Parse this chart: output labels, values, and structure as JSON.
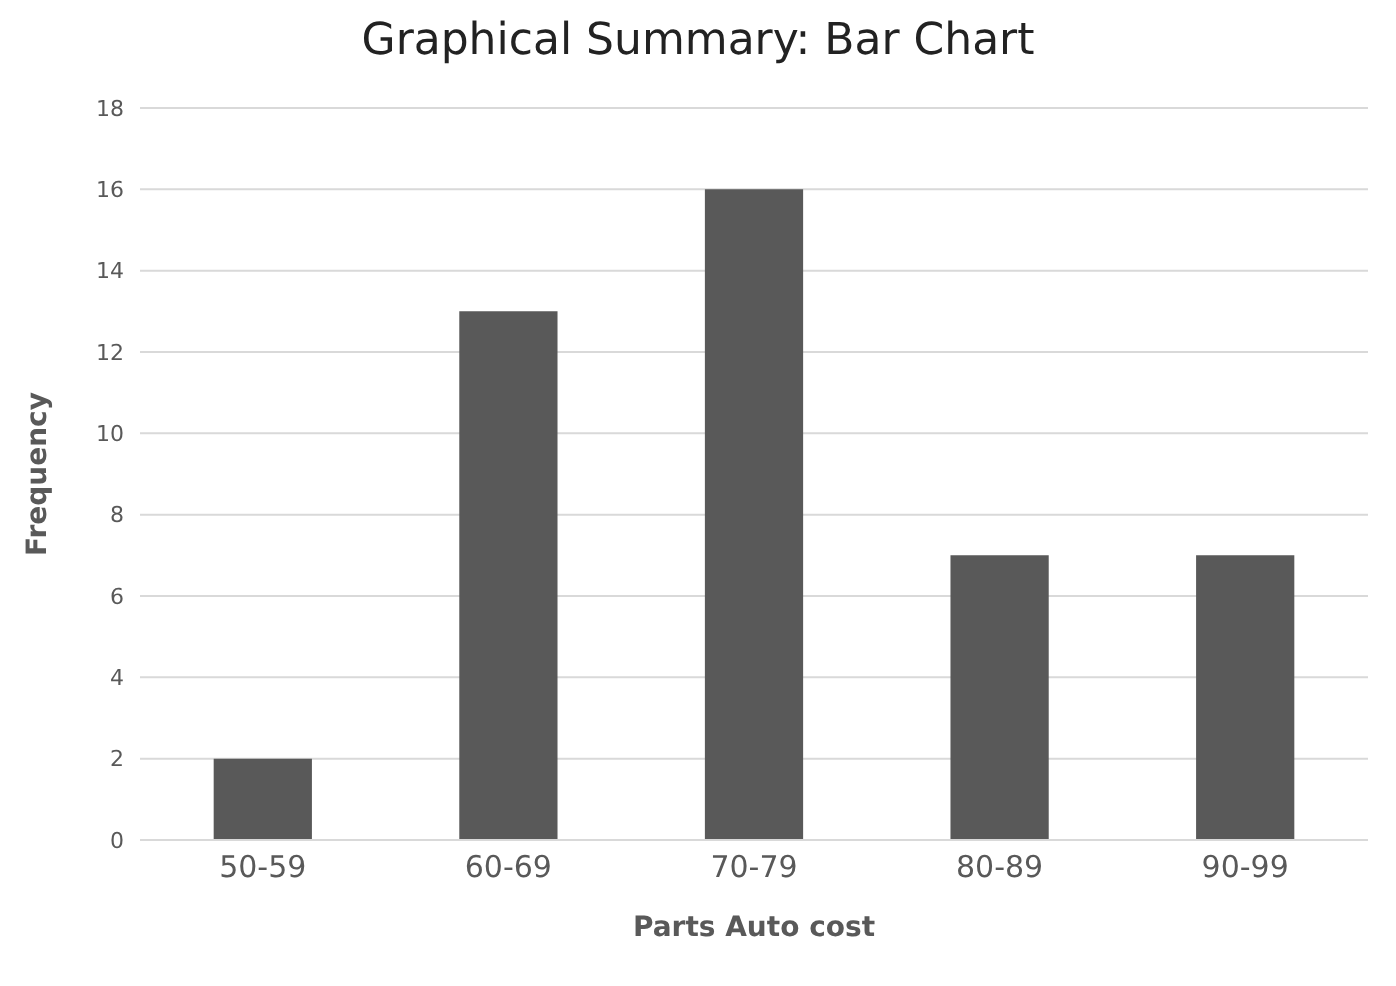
{
  "chart_data": {
    "type": "bar",
    "title": "Graphical Summary: Bar Chart",
    "xlabel": "Parts Auto cost",
    "ylabel": "Frequency",
    "categories": [
      "50-59",
      "60-69",
      "70-79",
      "80-89",
      "90-99"
    ],
    "values": [
      2,
      13,
      16,
      7,
      7
    ],
    "color": "#595959",
    "ylim": [
      0,
      18
    ],
    "yticks": [
      0,
      2,
      4,
      6,
      8,
      10,
      12,
      14,
      16,
      18
    ],
    "grid": "y"
  }
}
